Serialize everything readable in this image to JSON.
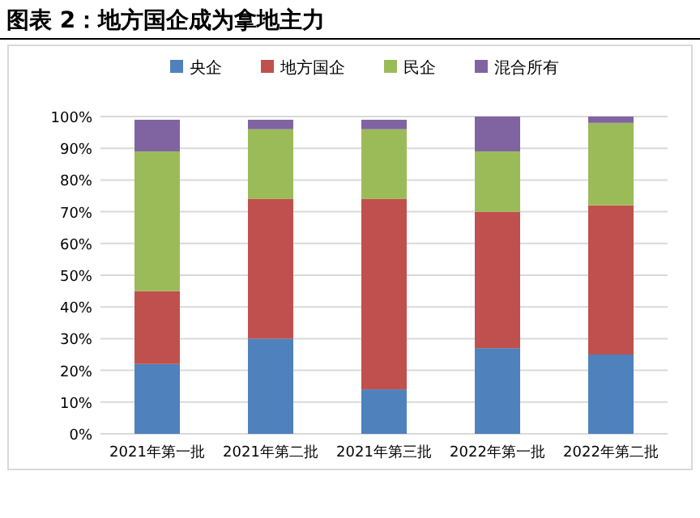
{
  "chart_data": {
    "type": "bar",
    "title": "图表 2：地方国企成为拿地主力",
    "stacked": true,
    "categories": [
      "2021年第一批",
      "2021年第二批",
      "2021年第三批",
      "2022年第一批",
      "2022年第二批"
    ],
    "series": [
      {
        "name": "央企",
        "color": "#4f81bd",
        "values": [
          22,
          30,
          14,
          27,
          25
        ]
      },
      {
        "name": "地方国企",
        "color": "#c0504d",
        "values": [
          23,
          44,
          60,
          43,
          47
        ]
      },
      {
        "name": "民企",
        "color": "#9bbb59",
        "values": [
          44,
          22,
          22,
          19,
          26
        ]
      },
      {
        "name": "混合所有",
        "color": "#8064a2",
        "values": [
          10,
          3,
          3,
          11,
          2
        ]
      }
    ],
    "ylim": [
      0,
      100
    ],
    "yticks": [
      {
        "value": 0,
        "label": "0%"
      },
      {
        "value": 10,
        "label": "10%"
      },
      {
        "value": 20,
        "label": "20%"
      },
      {
        "value": 30,
        "label": "30%"
      },
      {
        "value": 40,
        "label": "40%"
      },
      {
        "value": 50,
        "label": "50%"
      },
      {
        "value": 60,
        "label": "60%"
      },
      {
        "value": 70,
        "label": "70%"
      },
      {
        "value": 80,
        "label": "80%"
      },
      {
        "value": 90,
        "label": "90%"
      },
      {
        "value": 100,
        "label": "100%"
      }
    ],
    "grid": "y",
    "legend": "top"
  }
}
